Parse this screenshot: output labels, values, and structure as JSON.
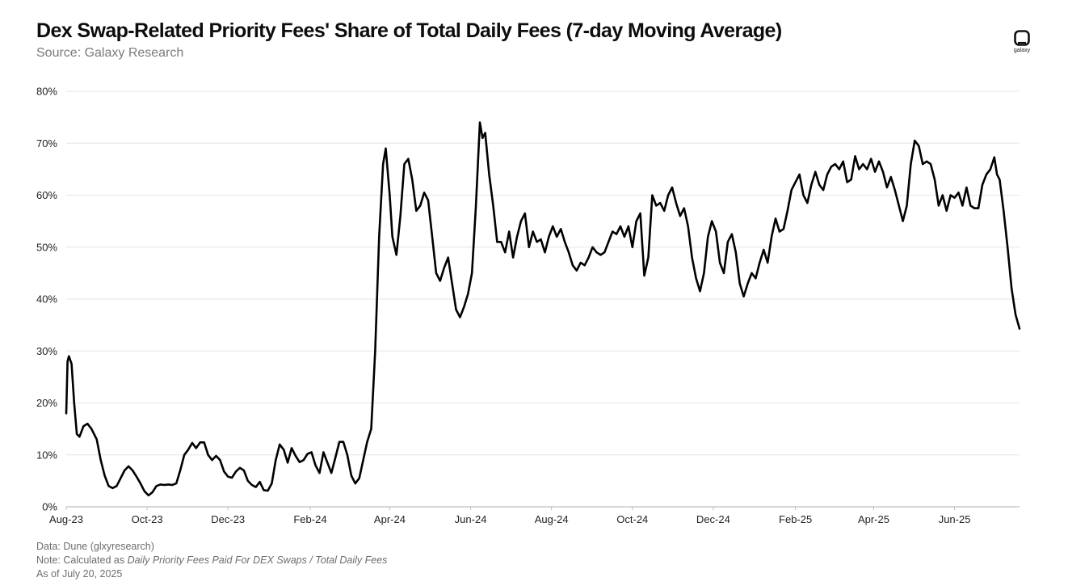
{
  "header": {
    "title": "Dex Swap-Related Priority Fees' Share of Total Daily Fees (7-day Moving Average)",
    "subtitle": "Source: Galaxy Research"
  },
  "logo": {
    "text": "galaxy",
    "icon": "galaxy-logo-icon"
  },
  "footer": {
    "data_line": "Data: Dune (glxyresearch)",
    "note_prefix": "Note: Calculated as ",
    "note_formula": "Daily Priority Fees Paid For DEX Swaps / Total Daily Fees",
    "as_of": "As of July 20, 2025"
  },
  "colors": {
    "line": "#000000",
    "grid": "#e6e6e6",
    "axis": "#bdbdbd",
    "tick_text": "#222222"
  },
  "chart_data": {
    "type": "line",
    "title": "Dex Swap-Related Priority Fees' Share of Total Daily Fees (7-day Moving Average)",
    "xlabel": "",
    "ylabel": "",
    "ylim": [
      0,
      80
    ],
    "xlim": [
      "2023-08-01",
      "2025-07-20"
    ],
    "grid": true,
    "legend": "none",
    "y_ticks": [
      0,
      10,
      20,
      30,
      40,
      50,
      60,
      70,
      80
    ],
    "y_tick_labels": [
      "0%",
      "10%",
      "20%",
      "30%",
      "40%",
      "50%",
      "60%",
      "70%",
      "80%"
    ],
    "x_ticks": [
      "2023-08-01",
      "2023-10-01",
      "2023-12-01",
      "2024-02-01",
      "2024-04-01",
      "2024-06-01",
      "2024-08-01",
      "2024-10-01",
      "2024-12-01",
      "2025-02-01",
      "2025-04-01",
      "2025-06-01"
    ],
    "x_tick_labels": [
      "Aug-23",
      "Oct-23",
      "Dec-23",
      "Feb-24",
      "Apr-24",
      "Jun-24",
      "Aug-24",
      "Oct-24",
      "Dec-24",
      "Feb-25",
      "Apr-25",
      "Jun-25"
    ],
    "series": [
      {
        "values": [
          [
            "2023-08-01",
            18
          ],
          [
            "2023-08-02",
            28
          ],
          [
            "2023-08-03",
            29
          ],
          [
            "2023-08-05",
            27.5
          ],
          [
            "2023-08-07",
            20
          ],
          [
            "2023-08-09",
            14
          ],
          [
            "2023-08-11",
            13.5
          ],
          [
            "2023-08-14",
            15.5
          ],
          [
            "2023-08-17",
            16
          ],
          [
            "2023-08-20",
            15
          ],
          [
            "2023-08-24",
            13
          ],
          [
            "2023-08-27",
            9
          ],
          [
            "2023-08-30",
            6
          ],
          [
            "2023-09-02",
            4
          ],
          [
            "2023-09-05",
            3.6
          ],
          [
            "2023-09-08",
            4
          ],
          [
            "2023-09-11",
            5.5
          ],
          [
            "2023-09-14",
            7
          ],
          [
            "2023-09-17",
            7.8
          ],
          [
            "2023-09-20",
            7
          ],
          [
            "2023-09-23",
            5.8
          ],
          [
            "2023-09-26",
            4.5
          ],
          [
            "2023-09-29",
            3
          ],
          [
            "2023-10-02",
            2.2
          ],
          [
            "2023-10-05",
            2.8
          ],
          [
            "2023-10-08",
            4
          ],
          [
            "2023-10-11",
            4.3
          ],
          [
            "2023-10-14",
            4.2
          ],
          [
            "2023-10-17",
            4.3
          ],
          [
            "2023-10-20",
            4.2
          ],
          [
            "2023-10-23",
            4.5
          ],
          [
            "2023-10-26",
            7
          ],
          [
            "2023-10-29",
            10
          ],
          [
            "2023-11-01",
            11
          ],
          [
            "2023-11-04",
            12.3
          ],
          [
            "2023-11-07",
            11.3
          ],
          [
            "2023-11-10",
            12.4
          ],
          [
            "2023-11-13",
            12.4
          ],
          [
            "2023-11-16",
            10
          ],
          [
            "2023-11-19",
            9
          ],
          [
            "2023-11-22",
            9.8
          ],
          [
            "2023-11-25",
            9
          ],
          [
            "2023-11-28",
            6.8
          ],
          [
            "2023-12-01",
            5.8
          ],
          [
            "2023-12-04",
            5.6
          ],
          [
            "2023-12-07",
            6.8
          ],
          [
            "2023-12-10",
            7.5
          ],
          [
            "2023-12-13",
            7
          ],
          [
            "2023-12-16",
            5
          ],
          [
            "2023-12-19",
            4.2
          ],
          [
            "2023-12-22",
            3.8
          ],
          [
            "2023-12-25",
            4.8
          ],
          [
            "2023-12-28",
            3.2
          ],
          [
            "2023-12-31",
            3.1
          ],
          [
            "2024-01-03",
            4.5
          ],
          [
            "2024-01-06",
            9
          ],
          [
            "2024-01-09",
            12
          ],
          [
            "2024-01-12",
            11
          ],
          [
            "2024-01-15",
            8.5
          ],
          [
            "2024-01-18",
            11.3
          ],
          [
            "2024-01-21",
            9.8
          ],
          [
            "2024-01-24",
            8.6
          ],
          [
            "2024-01-27",
            9
          ],
          [
            "2024-01-30",
            10.2
          ],
          [
            "2024-02-02",
            10.5
          ],
          [
            "2024-02-05",
            8
          ],
          [
            "2024-02-08",
            6.5
          ],
          [
            "2024-02-11",
            10.5
          ],
          [
            "2024-02-14",
            8.5
          ],
          [
            "2024-02-17",
            6.5
          ],
          [
            "2024-02-20",
            9.5
          ],
          [
            "2024-02-23",
            12.5
          ],
          [
            "2024-02-26",
            12.5
          ],
          [
            "2024-02-29",
            10
          ],
          [
            "2024-03-03",
            6
          ],
          [
            "2024-03-06",
            4.5
          ],
          [
            "2024-03-09",
            5.5
          ],
          [
            "2024-03-12",
            9
          ],
          [
            "2024-03-15",
            12.5
          ],
          [
            "2024-03-18",
            15
          ],
          [
            "2024-03-21",
            30
          ],
          [
            "2024-03-24",
            52
          ],
          [
            "2024-03-27",
            66
          ],
          [
            "2024-03-29",
            69
          ],
          [
            "2024-04-01",
            60
          ],
          [
            "2024-04-03",
            52
          ],
          [
            "2024-04-06",
            48.5
          ],
          [
            "2024-04-09",
            56
          ],
          [
            "2024-04-12",
            66
          ],
          [
            "2024-04-15",
            67
          ],
          [
            "2024-04-18",
            63
          ],
          [
            "2024-04-21",
            57
          ],
          [
            "2024-04-24",
            58
          ],
          [
            "2024-04-27",
            60.5
          ],
          [
            "2024-04-30",
            59
          ],
          [
            "2024-05-03",
            52
          ],
          [
            "2024-05-06",
            45
          ],
          [
            "2024-05-09",
            43.5
          ],
          [
            "2024-05-12",
            46
          ],
          [
            "2024-05-15",
            48
          ],
          [
            "2024-05-18",
            43
          ],
          [
            "2024-05-21",
            38
          ],
          [
            "2024-05-24",
            36.5
          ],
          [
            "2024-05-27",
            38.5
          ],
          [
            "2024-05-30",
            41
          ],
          [
            "2024-06-02",
            45
          ],
          [
            "2024-06-05",
            58
          ],
          [
            "2024-06-08",
            74
          ],
          [
            "2024-06-10",
            71
          ],
          [
            "2024-06-12",
            72
          ],
          [
            "2024-06-15",
            64
          ],
          [
            "2024-06-18",
            58
          ],
          [
            "2024-06-21",
            51
          ],
          [
            "2024-06-24",
            51
          ],
          [
            "2024-06-27",
            49
          ],
          [
            "2024-06-30",
            53
          ],
          [
            "2024-07-03",
            48
          ],
          [
            "2024-07-06",
            52
          ],
          [
            "2024-07-09",
            55
          ],
          [
            "2024-07-12",
            56.5
          ],
          [
            "2024-07-15",
            50
          ],
          [
            "2024-07-18",
            53
          ],
          [
            "2024-07-21",
            51
          ],
          [
            "2024-07-24",
            51.5
          ],
          [
            "2024-07-27",
            49
          ],
          [
            "2024-07-30",
            52
          ],
          [
            "2024-08-02",
            54
          ],
          [
            "2024-08-05",
            52
          ],
          [
            "2024-08-08",
            53.5
          ],
          [
            "2024-08-11",
            51
          ],
          [
            "2024-08-14",
            49
          ],
          [
            "2024-08-17",
            46.5
          ],
          [
            "2024-08-20",
            45.5
          ],
          [
            "2024-08-23",
            47
          ],
          [
            "2024-08-26",
            46.5
          ],
          [
            "2024-08-29",
            48
          ],
          [
            "2024-09-01",
            50
          ],
          [
            "2024-09-04",
            49
          ],
          [
            "2024-09-07",
            48.5
          ],
          [
            "2024-09-10",
            49
          ],
          [
            "2024-09-13",
            51
          ],
          [
            "2024-09-16",
            53
          ],
          [
            "2024-09-19",
            52.5
          ],
          [
            "2024-09-22",
            54
          ],
          [
            "2024-09-25",
            52
          ],
          [
            "2024-09-28",
            54
          ],
          [
            "2024-10-01",
            50
          ],
          [
            "2024-10-04",
            55
          ],
          [
            "2024-10-07",
            56.5
          ],
          [
            "2024-10-10",
            44.5
          ],
          [
            "2024-10-13",
            48
          ],
          [
            "2024-10-16",
            60
          ],
          [
            "2024-10-19",
            58
          ],
          [
            "2024-10-22",
            58.5
          ],
          [
            "2024-10-25",
            57
          ],
          [
            "2024-10-28",
            60
          ],
          [
            "2024-10-31",
            61.5
          ],
          [
            "2024-11-03",
            58.5
          ],
          [
            "2024-11-06",
            56
          ],
          [
            "2024-11-09",
            57.5
          ],
          [
            "2024-11-12",
            54
          ],
          [
            "2024-11-15",
            48
          ],
          [
            "2024-11-18",
            44
          ],
          [
            "2024-11-21",
            41.5
          ],
          [
            "2024-11-24",
            45
          ],
          [
            "2024-11-27",
            52
          ],
          [
            "2024-11-30",
            55
          ],
          [
            "2024-12-03",
            53
          ],
          [
            "2024-12-06",
            47
          ],
          [
            "2024-12-09",
            45
          ],
          [
            "2024-12-12",
            51
          ],
          [
            "2024-12-15",
            52.5
          ],
          [
            "2024-12-18",
            49
          ],
          [
            "2024-12-21",
            43
          ],
          [
            "2024-12-24",
            40.5
          ],
          [
            "2024-12-27",
            43
          ],
          [
            "2024-12-30",
            45
          ],
          [
            "2025-01-02",
            44
          ],
          [
            "2025-01-05",
            47
          ],
          [
            "2025-01-08",
            49.5
          ],
          [
            "2025-01-11",
            47
          ],
          [
            "2025-01-14",
            52
          ],
          [
            "2025-01-17",
            55.5
          ],
          [
            "2025-01-20",
            53
          ],
          [
            "2025-01-23",
            53.5
          ],
          [
            "2025-01-26",
            57
          ],
          [
            "2025-01-29",
            61
          ],
          [
            "2025-02-01",
            62.5
          ],
          [
            "2025-02-04",
            64
          ],
          [
            "2025-02-07",
            60
          ],
          [
            "2025-02-10",
            58.5
          ],
          [
            "2025-02-13",
            62
          ],
          [
            "2025-02-16",
            64.5
          ],
          [
            "2025-02-19",
            62
          ],
          [
            "2025-02-22",
            61
          ],
          [
            "2025-02-25",
            64
          ],
          [
            "2025-02-28",
            65.5
          ],
          [
            "2025-03-03",
            66
          ],
          [
            "2025-03-06",
            65
          ],
          [
            "2025-03-09",
            66.5
          ],
          [
            "2025-03-12",
            62.5
          ],
          [
            "2025-03-15",
            63
          ],
          [
            "2025-03-18",
            67.5
          ],
          [
            "2025-03-21",
            65
          ],
          [
            "2025-03-24",
            66
          ],
          [
            "2025-03-27",
            65
          ],
          [
            "2025-03-30",
            67
          ],
          [
            "2025-04-02",
            64.5
          ],
          [
            "2025-04-05",
            66.5
          ],
          [
            "2025-04-08",
            64.5
          ],
          [
            "2025-04-11",
            61.5
          ],
          [
            "2025-04-14",
            63.5
          ],
          [
            "2025-04-17",
            61
          ],
          [
            "2025-04-20",
            58
          ],
          [
            "2025-04-23",
            55
          ],
          [
            "2025-04-26",
            58
          ],
          [
            "2025-04-29",
            66
          ],
          [
            "2025-05-02",
            70.5
          ],
          [
            "2025-05-05",
            69.5
          ],
          [
            "2025-05-08",
            66
          ],
          [
            "2025-05-11",
            66.5
          ],
          [
            "2025-05-14",
            66
          ],
          [
            "2025-05-17",
            63
          ],
          [
            "2025-05-20",
            58
          ],
          [
            "2025-05-23",
            60
          ],
          [
            "2025-05-26",
            57
          ],
          [
            "2025-05-29",
            60
          ],
          [
            "2025-06-01",
            59.5
          ],
          [
            "2025-06-04",
            60.5
          ],
          [
            "2025-06-07",
            58
          ],
          [
            "2025-06-10",
            61.5
          ],
          [
            "2025-06-13",
            58
          ],
          [
            "2025-06-16",
            57.5
          ],
          [
            "2025-06-19",
            57.5
          ],
          [
            "2025-06-22",
            62
          ],
          [
            "2025-06-25",
            64
          ],
          [
            "2025-06-28",
            65
          ],
          [
            "2025-07-01",
            67.3
          ],
          [
            "2025-07-03",
            64
          ],
          [
            "2025-07-05",
            63
          ],
          [
            "2025-07-08",
            57
          ],
          [
            "2025-07-11",
            50
          ],
          [
            "2025-07-14",
            42
          ],
          [
            "2025-07-17",
            37
          ],
          [
            "2025-07-20",
            34.3
          ]
        ]
      }
    ]
  }
}
